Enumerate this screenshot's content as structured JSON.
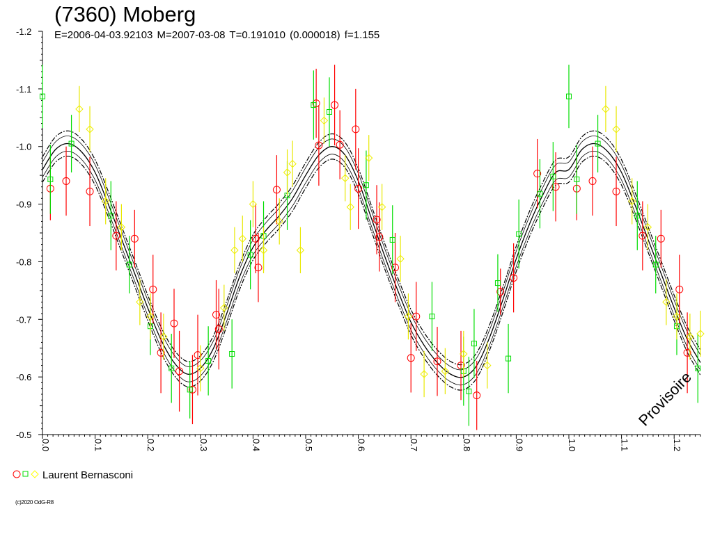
{
  "header": {
    "title": "(7360) Moberg",
    "params": "E=2006-04-03.92103    M=2007-03-08    T=0.191010 (0.000018)    f=1.155"
  },
  "legend": {
    "observer": "Laurent Bernasconi",
    "marker_colors": [
      "#ff0000",
      "#00dd00",
      "#ffff00"
    ]
  },
  "watermark": "Provisoire",
  "copyright": "(c)2020 OdG-R8",
  "chart_data": {
    "type": "scatter",
    "title": "(7360) Moberg",
    "xlabel": "",
    "ylabel": "",
    "xlim": [
      0.0,
      1.25
    ],
    "ylim": [
      -1.2,
      -0.5
    ],
    "y_inverted": true,
    "grid": false,
    "x_ticks": [
      "0.0",
      "0.1",
      "0.2",
      "0.3",
      "0.4",
      "0.5",
      "0.6",
      "0.7",
      "0.8",
      "0.9",
      "1.0",
      "1.1",
      "1.2"
    ],
    "y_ticks": [
      "-1.2",
      "-1.1",
      "-1.0",
      "-0.9",
      "-0.8",
      "-0.7",
      "-0.6",
      "-0.5"
    ],
    "fit_curve": {
      "description": "Fourier fit with upper/lower bounds",
      "period_phase": 1.0,
      "points": [
        [
          0.0,
          -0.96
        ],
        [
          0.025,
          -0.995
        ],
        [
          0.05,
          -1.005
        ],
        [
          0.075,
          -0.99
        ],
        [
          0.1,
          -0.955
        ],
        [
          0.125,
          -0.9
        ],
        [
          0.15,
          -0.84
        ],
        [
          0.175,
          -0.78
        ],
        [
          0.2,
          -0.72
        ],
        [
          0.225,
          -0.665
        ],
        [
          0.25,
          -0.625
        ],
        [
          0.275,
          -0.605
        ],
        [
          0.3,
          -0.615
        ],
        [
          0.325,
          -0.65
        ],
        [
          0.35,
          -0.71
        ],
        [
          0.375,
          -0.775
        ],
        [
          0.4,
          -0.825
        ],
        [
          0.425,
          -0.855
        ],
        [
          0.45,
          -0.88
        ],
        [
          0.475,
          -0.91
        ],
        [
          0.5,
          -0.95
        ],
        [
          0.525,
          -0.985
        ],
        [
          0.55,
          -1.0
        ],
        [
          0.575,
          -0.985
        ],
        [
          0.6,
          -0.94
        ],
        [
          0.625,
          -0.875
        ],
        [
          0.65,
          -0.81
        ],
        [
          0.675,
          -0.75
        ],
        [
          0.7,
          -0.695
        ],
        [
          0.725,
          -0.655
        ],
        [
          0.75,
          -0.625
        ],
        [
          0.775,
          -0.605
        ],
        [
          0.8,
          -0.6
        ],
        [
          0.825,
          -0.62
        ],
        [
          0.85,
          -0.67
        ],
        [
          0.875,
          -0.735
        ],
        [
          0.9,
          -0.805
        ],
        [
          0.925,
          -0.865
        ],
        [
          0.95,
          -0.915
        ],
        [
          0.975,
          -0.955
        ],
        [
          1.0,
          -0.96
        ],
        [
          1.025,
          -0.995
        ],
        [
          1.05,
          -1.005
        ],
        [
          1.075,
          -0.99
        ],
        [
          1.1,
          -0.955
        ],
        [
          1.125,
          -0.9
        ],
        [
          1.15,
          -0.84
        ],
        [
          1.175,
          -0.78
        ],
        [
          1.2,
          -0.72
        ],
        [
          1.225,
          -0.665
        ],
        [
          1.25,
          -0.625
        ]
      ],
      "band": 0.022
    },
    "series": [
      {
        "name": "Laurent Bernasconi",
        "marker": "circle",
        "color": "#ff0000",
        "points": [
          [
            0.015,
            -0.927,
            0.055
          ],
          [
            0.045,
            -0.94,
            0.06
          ],
          [
            0.09,
            -0.922,
            0.06
          ],
          [
            0.14,
            -0.845,
            0.06
          ],
          [
            0.175,
            -0.84,
            0.05
          ],
          [
            0.21,
            -0.752,
            0.06
          ],
          [
            0.225,
            -0.642,
            0.07
          ],
          [
            0.25,
            -0.693,
            0.06
          ],
          [
            0.26,
            -0.61,
            0.07
          ],
          [
            0.285,
            -0.578,
            0.06
          ],
          [
            0.295,
            -0.638,
            0.07
          ],
          [
            0.33,
            -0.708,
            0.06
          ],
          [
            0.335,
            -0.683,
            0.07
          ],
          [
            0.405,
            -0.84,
            0.06
          ],
          [
            0.41,
            -0.79,
            0.06
          ],
          [
            0.445,
            -0.925,
            0.06
          ],
          [
            0.52,
            -1.075,
            0.06
          ],
          [
            0.525,
            -1.002,
            0.07
          ],
          [
            0.555,
            -1.072,
            0.07
          ],
          [
            0.565,
            -1.003,
            0.06
          ],
          [
            0.595,
            -1.03,
            0.07
          ],
          [
            0.6,
            -0.927,
            0.07
          ],
          [
            0.635,
            -0.873,
            0.06
          ],
          [
            0.64,
            -0.843,
            0.06
          ],
          [
            0.67,
            -0.79,
            0.06
          ],
          [
            0.7,
            -0.633,
            0.06
          ],
          [
            0.71,
            -0.705,
            0.06
          ],
          [
            0.75,
            -0.627,
            0.06
          ],
          [
            0.795,
            -0.62,
            0.06
          ],
          [
            0.825,
            -0.568,
            0.06
          ],
          [
            0.87,
            -0.748,
            0.04
          ],
          [
            0.895,
            -0.772,
            0.06
          ],
          [
            0.94,
            -0.953,
            0.06
          ],
          [
            0.975,
            -0.93,
            0.06
          ],
          [
            1.015,
            -0.927,
            0.055
          ],
          [
            1.045,
            -0.94,
            0.06
          ],
          [
            1.09,
            -0.922,
            0.06
          ],
          [
            1.14,
            -0.845,
            0.06
          ],
          [
            1.175,
            -0.84,
            0.05
          ],
          [
            1.21,
            -0.752,
            0.06
          ],
          [
            1.225,
            -0.642,
            0.07
          ]
        ]
      },
      {
        "name": "Laurent Bernasconi",
        "marker": "square",
        "color": "#00dd00",
        "points": [
          [
            0.0,
            -1.087,
            0.055
          ],
          [
            0.015,
            -0.943,
            0.06
          ],
          [
            0.055,
            -1.005,
            0.05
          ],
          [
            0.13,
            -0.88,
            0.06
          ],
          [
            0.165,
            -0.795,
            0.05
          ],
          [
            0.205,
            -0.688,
            0.05
          ],
          [
            0.245,
            -0.615,
            0.06
          ],
          [
            0.28,
            -0.578,
            0.05
          ],
          [
            0.315,
            -0.628,
            0.06
          ],
          [
            0.36,
            -0.64,
            0.06
          ],
          [
            0.395,
            -0.812,
            0.06
          ],
          [
            0.42,
            -0.845,
            0.06
          ],
          [
            0.465,
            -0.915,
            0.06
          ],
          [
            0.515,
            -1.072,
            0.06
          ],
          [
            0.545,
            -1.06,
            0.06
          ],
          [
            0.615,
            -0.933,
            0.06
          ],
          [
            0.665,
            -0.838,
            0.06
          ],
          [
            0.74,
            -0.705,
            0.06
          ],
          [
            0.8,
            -0.61,
            0.06
          ],
          [
            0.81,
            -0.575,
            0.06
          ],
          [
            0.82,
            -0.658,
            0.06
          ],
          [
            0.865,
            -0.763,
            0.05
          ],
          [
            0.885,
            -0.632,
            0.06
          ],
          [
            0.905,
            -0.848,
            0.06
          ],
          [
            0.945,
            -0.918,
            0.06
          ],
          [
            0.97,
            -0.948,
            0.06
          ],
          [
            1.0,
            -1.087,
            0.055
          ],
          [
            1.015,
            -0.943,
            0.06
          ],
          [
            1.055,
            -1.005,
            0.05
          ],
          [
            1.13,
            -0.88,
            0.06
          ],
          [
            1.165,
            -0.795,
            0.05
          ],
          [
            1.205,
            -0.688,
            0.05
          ],
          [
            1.245,
            -0.615,
            0.06
          ]
        ]
      },
      {
        "name": "Laurent Bernasconi",
        "marker": "diamond",
        "color": "#ffff00",
        "points": [
          [
            0.07,
            -1.065,
            0.04
          ],
          [
            0.09,
            -1.03,
            0.04
          ],
          [
            0.12,
            -0.905,
            0.04
          ],
          [
            0.15,
            -0.86,
            0.04
          ],
          [
            0.185,
            -0.73,
            0.04
          ],
          [
            0.205,
            -0.705,
            0.04
          ],
          [
            0.23,
            -0.67,
            0.04
          ],
          [
            0.3,
            -0.615,
            0.04
          ],
          [
            0.345,
            -0.72,
            0.04
          ],
          [
            0.365,
            -0.82,
            0.04
          ],
          [
            0.38,
            -0.84,
            0.04
          ],
          [
            0.4,
            -0.9,
            0.04
          ],
          [
            0.42,
            -0.82,
            0.04
          ],
          [
            0.45,
            -0.87,
            0.04
          ],
          [
            0.465,
            -0.955,
            0.04
          ],
          [
            0.475,
            -0.97,
            0.04
          ],
          [
            0.49,
            -0.82,
            0.04
          ],
          [
            0.535,
            -1.045,
            0.04
          ],
          [
            0.575,
            -0.945,
            0.04
          ],
          [
            0.585,
            -0.895,
            0.04
          ],
          [
            0.62,
            -0.98,
            0.04
          ],
          [
            0.645,
            -0.895,
            0.04
          ],
          [
            0.68,
            -0.805,
            0.04
          ],
          [
            0.695,
            -0.705,
            0.04
          ],
          [
            0.725,
            -0.605,
            0.04
          ],
          [
            0.765,
            -0.61,
            0.04
          ],
          [
            0.8,
            -0.64,
            0.04
          ],
          [
            0.845,
            -0.62,
            0.04
          ],
          [
            1.07,
            -1.065,
            0.04
          ],
          [
            1.09,
            -1.03,
            0.04
          ],
          [
            1.12,
            -0.905,
            0.04
          ],
          [
            1.15,
            -0.86,
            0.04
          ],
          [
            1.185,
            -0.73,
            0.04
          ],
          [
            1.205,
            -0.705,
            0.04
          ],
          [
            1.23,
            -0.67,
            0.04
          ],
          [
            1.25,
            -0.675,
            0.04
          ]
        ]
      }
    ]
  }
}
